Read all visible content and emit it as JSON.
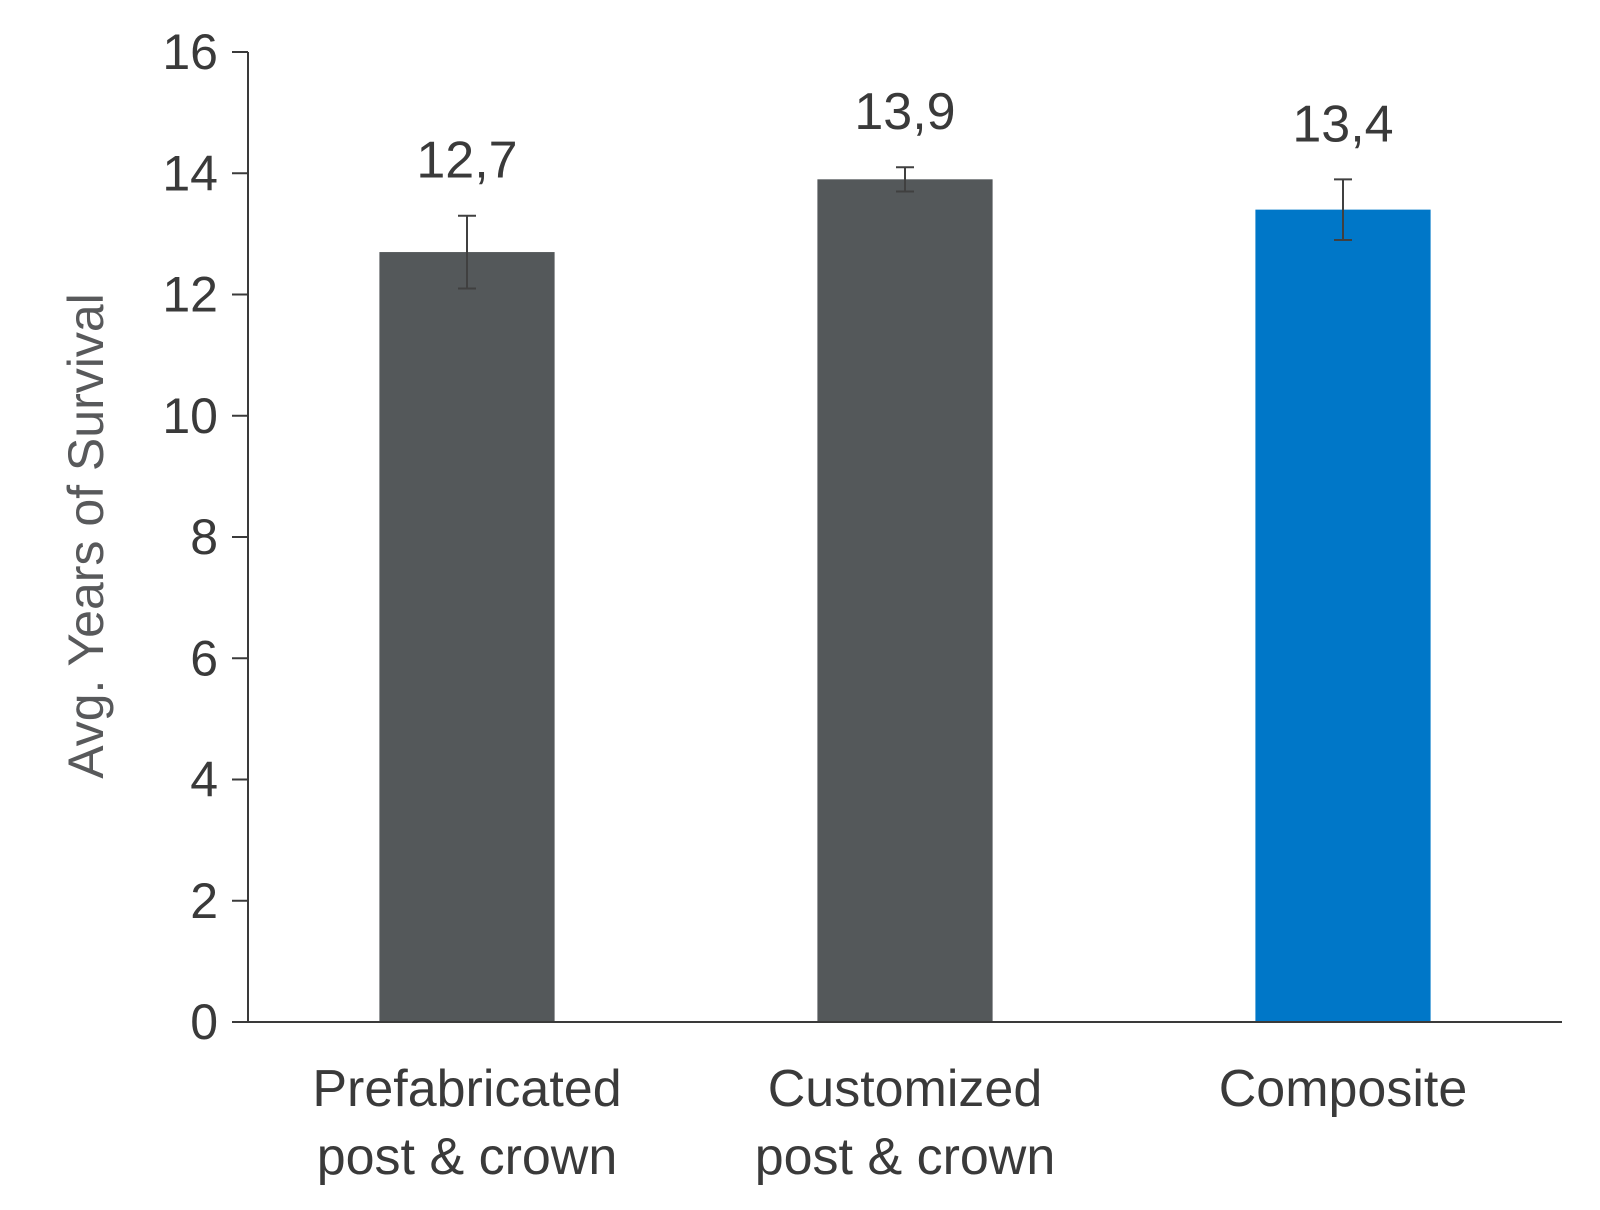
{
  "chart_data": {
    "type": "bar",
    "categories": [
      [
        "Prefabricated",
        "post & crown"
      ],
      [
        "Customized",
        "post & crown"
      ],
      [
        "Composite"
      ]
    ],
    "values": [
      12.7,
      13.9,
      13.4
    ],
    "value_labels": [
      "12,7",
      "13,9",
      "13,4"
    ],
    "error_bars": [
      {
        "low": 12.1,
        "high": 13.3
      },
      {
        "low": 13.7,
        "high": 14.1
      },
      {
        "low": 12.9,
        "high": 13.9
      }
    ],
    "bar_colors": [
      "#54585a",
      "#54585a",
      "#0077c8"
    ],
    "title": "",
    "xlabel": "",
    "ylabel": "Avg. Years of Survival",
    "ylim": [
      0,
      16
    ],
    "yticks": [
      0,
      2,
      4,
      6,
      8,
      10,
      12,
      14,
      16
    ],
    "grid": false,
    "legend": false
  }
}
